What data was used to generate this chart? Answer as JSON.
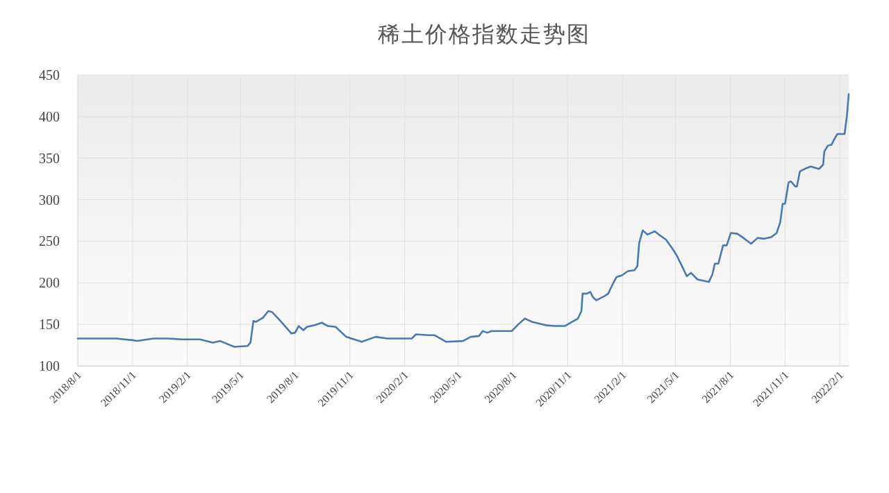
{
  "chart_data": {
    "type": "line",
    "title": "稀土价格指数走势图",
    "x": [
      "2018-08-01",
      "2018-08-24",
      "2018-08-30",
      "2018-10-04",
      "2018-11-01",
      "2018-11-09",
      "2018-12-06",
      "2018-12-29",
      "2019-01-22",
      "2019-02-22",
      "2019-03-16",
      "2019-03-28",
      "2019-04-21",
      "2019-05-13",
      "2019-05-18",
      "2019-05-23",
      "2019-05-27",
      "2019-06-08",
      "2019-06-17",
      "2019-06-23",
      "2019-07-05",
      "2019-07-26",
      "2019-08-01",
      "2019-08-07",
      "2019-08-15",
      "2019-08-21",
      "2019-09-03",
      "2019-09-15",
      "2019-09-25",
      "2019-10-08",
      "2019-10-26",
      "2019-11-21",
      "2019-12-14",
      "2020-01-03",
      "2020-01-15",
      "2020-02-13",
      "2020-02-20",
      "2020-03-13",
      "2020-03-22",
      "2020-04-11",
      "2020-05-09",
      "2020-05-22",
      "2020-06-05",
      "2020-06-11",
      "2020-06-19",
      "2020-06-26",
      "2020-07-30",
      "2020-08-10",
      "2020-08-21",
      "2020-09-02",
      "2020-09-25",
      "2020-10-10",
      "2020-10-27",
      "2020-11-08",
      "2020-11-18",
      "2020-11-24",
      "2020-11-26",
      "2020-12-03",
      "2020-12-09",
      "2020-12-13",
      "2020-12-19",
      "2021-01-02",
      "2021-01-08",
      "2021-01-16",
      "2021-01-22",
      "2021-01-31",
      "2021-02-10",
      "2021-02-21",
      "2021-02-26",
      "2021-03-01",
      "2021-03-07",
      "2021-03-15",
      "2021-03-27",
      "2021-04-03",
      "2021-04-15",
      "2021-04-26",
      "2021-05-03",
      "2021-05-12",
      "2021-05-20",
      "2021-05-27",
      "2021-06-07",
      "2021-06-14",
      "2021-06-26",
      "2021-07-02",
      "2021-07-06",
      "2021-07-12",
      "2021-07-20",
      "2021-07-26",
      "2021-08-02",
      "2021-08-13",
      "2021-08-23",
      "2021-09-05",
      "2021-09-16",
      "2021-09-27",
      "2021-10-09",
      "2021-10-18",
      "2021-10-24",
      "2021-10-28",
      "2021-11-01",
      "2021-11-07",
      "2021-11-11",
      "2021-11-18",
      "2021-11-21",
      "2021-11-26",
      "2021-12-04",
      "2021-12-14",
      "2021-12-28",
      "2022-01-04",
      "2022-01-06",
      "2022-01-12",
      "2022-01-18",
      "2022-01-23",
      "2022-01-28",
      "2022-02-09",
      "2022-02-13",
      "2022-02-16"
    ],
    "series": [
      {
        "color": "#4a78b0",
        "values": [
          133,
          133,
          133,
          133,
          131,
          130,
          133,
          133,
          132,
          132,
          128,
          130,
          123,
          124,
          128,
          154,
          153,
          158,
          166,
          165,
          156,
          139,
          140,
          148,
          143,
          147,
          149,
          152,
          148,
          147,
          135,
          129,
          135,
          133,
          133,
          133,
          138,
          137,
          137,
          129,
          130,
          135,
          136,
          142,
          140,
          142,
          142,
          150,
          157,
          153,
          149,
          148,
          148,
          153,
          157,
          166,
          187,
          187,
          189,
          183,
          179,
          184,
          187,
          199,
          207,
          209,
          214,
          215,
          220,
          248,
          263,
          258,
          262,
          258,
          252,
          241,
          233,
          220,
          208,
          212,
          204,
          203,
          201,
          210,
          223,
          223,
          245,
          245,
          260,
          259,
          254,
          247,
          254,
          253,
          255,
          260,
          273,
          295,
          295,
          321,
          322,
          316,
          316,
          334,
          337,
          340,
          337,
          342,
          358,
          365,
          366,
          373,
          379,
          379,
          401,
          427
        ]
      }
    ],
    "xlim": [
      "2018-08-01",
      "2022-02-16"
    ],
    "ylim": [
      100,
      450
    ],
    "xticks": [
      {
        "value": "2018-08-01",
        "label": "2018/8/1"
      },
      {
        "value": "2018-11-01",
        "label": "2018/11/1"
      },
      {
        "value": "2019-02-01",
        "label": "2019/2/1"
      },
      {
        "value": "2019-05-01",
        "label": "2019/5/1"
      },
      {
        "value": "2019-08-01",
        "label": "2019/8/1"
      },
      {
        "value": "2019-11-01",
        "label": "2019/11/1"
      },
      {
        "value": "2020-02-01",
        "label": "2020/2/1"
      },
      {
        "value": "2020-05-01",
        "label": "2020/5/1"
      },
      {
        "value": "2020-08-01",
        "label": "2020/8/1"
      },
      {
        "value": "2020-11-01",
        "label": "2020/11/1"
      },
      {
        "value": "2021-02-01",
        "label": "2021/2/1"
      },
      {
        "value": "2021-05-01",
        "label": "2021/5/1"
      },
      {
        "value": "2021-08-01",
        "label": "2021/8/1"
      },
      {
        "value": "2021-11-01",
        "label": "2021/11/1"
      },
      {
        "value": "2022-02-01",
        "label": "2022/2/1"
      }
    ],
    "yticks": [
      100,
      150,
      200,
      250,
      300,
      350,
      400,
      450
    ],
    "grid": true
  }
}
